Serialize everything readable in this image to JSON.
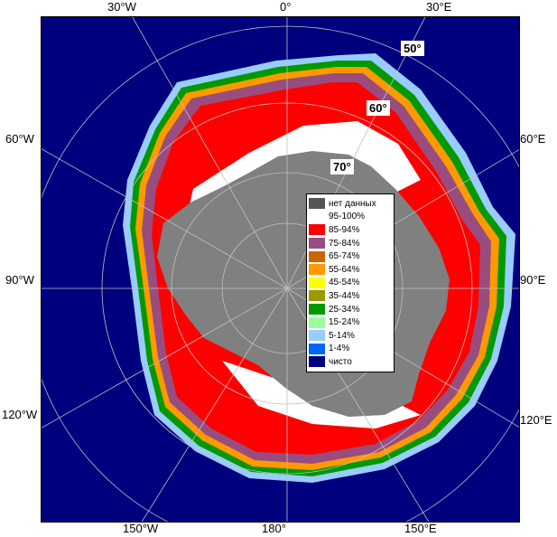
{
  "map": {
    "colors": {
      "ocean": "#00007f",
      "land": "#808080",
      "ice_high": "#ff0000",
      "ice_mid": "#994d7f",
      "ice_full": "#ffffff",
      "ice_low": "#cc6600",
      "graticule": "#bfbfbf"
    },
    "longitude_labels": {
      "top_30w": "30°W",
      "top_0": "0°",
      "top_30e": "30°E",
      "left_60w": "60°W",
      "right_60e": "60°E",
      "left_90w": "90°W",
      "right_90e": "90°E",
      "left_120w": "120°W",
      "right_120e": "120°E",
      "bottom_150w": "150°W",
      "bottom_180": "180°",
      "bottom_150e": "150°E"
    },
    "latitude_labels": {
      "lat50": "50°",
      "lat60": "60°",
      "lat70": "70°"
    }
  },
  "legend": {
    "items": [
      {
        "label": "нет данных",
        "color": "#555555"
      },
      {
        "label": "95-100%",
        "color": "#ffffff"
      },
      {
        "label": "85-94%",
        "color": "#ff0000"
      },
      {
        "label": "75-84%",
        "color": "#994d7f"
      },
      {
        "label": "65-74%",
        "color": "#cc6600"
      },
      {
        "label": "55-64%",
        "color": "#ff9900"
      },
      {
        "label": "45-54%",
        "color": "#ffff00"
      },
      {
        "label": "35-44%",
        "color": "#999900"
      },
      {
        "label": "25-34%",
        "color": "#009900"
      },
      {
        "label": "15-24%",
        "color": "#99ff99"
      },
      {
        "label": "5-14%",
        "color": "#99ccff"
      },
      {
        "label": "1-4%",
        "color": "#0066ff"
      },
      {
        "label": "чисто",
        "color": "#00007f"
      }
    ]
  }
}
